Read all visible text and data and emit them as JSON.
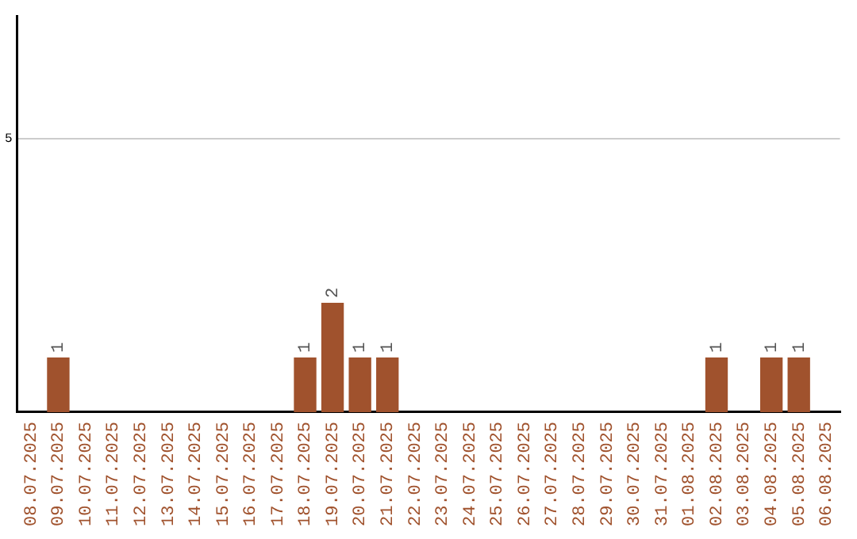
{
  "chart_data": {
    "type": "bar",
    "categories": [
      "08.07.2025",
      "09.07.2025",
      "10.07.2025",
      "11.07.2025",
      "12.07.2025",
      "13.07.2025",
      "14.07.2025",
      "15.07.2025",
      "16.07.2025",
      "17.07.2025",
      "18.07.2025",
      "19.07.2025",
      "20.07.2025",
      "21.07.2025",
      "22.07.2025",
      "23.07.2025",
      "24.07.2025",
      "25.07.2025",
      "26.07.2025",
      "27.07.2025",
      "28.07.2025",
      "29.07.2025",
      "30.07.2025",
      "31.07.2025",
      "01.08.2025",
      "02.08.2025",
      "03.08.2025",
      "04.08.2025",
      "05.08.2025",
      "06.08.2025"
    ],
    "values": [
      0,
      1,
      0,
      0,
      0,
      0,
      0,
      0,
      0,
      0,
      1,
      2,
      1,
      1,
      0,
      0,
      0,
      0,
      0,
      0,
      0,
      0,
      0,
      0,
      0,
      1,
      0,
      1,
      1,
      0
    ],
    "value_labels": [
      null,
      "1",
      null,
      null,
      null,
      null,
      null,
      null,
      null,
      null,
      "1",
      "2",
      "1",
      "1",
      null,
      null,
      null,
      null,
      null,
      null,
      null,
      null,
      null,
      null,
      null,
      "1",
      null,
      "1",
      "1",
      null
    ],
    "color": "#a0522d",
    "ylim": [
      0,
      7.25
    ],
    "yticks": [
      5
    ],
    "grid": "y",
    "legend": false
  }
}
